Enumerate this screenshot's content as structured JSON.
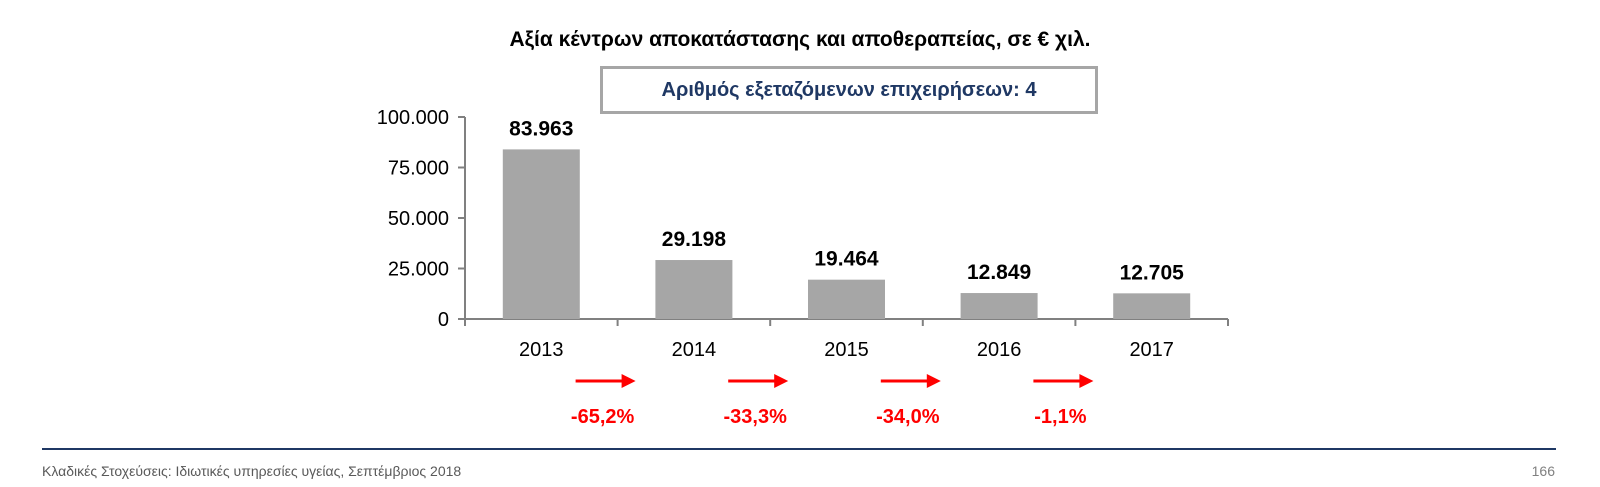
{
  "chart_data": {
    "type": "bar",
    "title": "Αξία κέντρων αποκατάστασης και αποθεραπείας, σε € χιλ.",
    "annotation_box": "Αριθμός εξεταζόμενων επιχειρήσεων: 4",
    "categories": [
      "2013",
      "2014",
      "2015",
      "2016",
      "2017"
    ],
    "values": [
      83963,
      29198,
      19464,
      12849,
      12705
    ],
    "value_labels": [
      "83.963",
      "29.198",
      "19.464",
      "12.849",
      "12.705"
    ],
    "yticks": [
      0,
      25000,
      50000,
      75000,
      100000
    ],
    "ytick_labels": [
      "0",
      "25.000",
      "50.000",
      "75.000",
      "100.000"
    ],
    "ylim": [
      0,
      100000
    ],
    "grid": false,
    "legend": "none",
    "changes": [
      "-65,2%",
      "-33,3%",
      "-34,0%",
      "-1,1%"
    ],
    "bar_color": "#a6a6a6",
    "change_color": "#ff0000"
  },
  "footer": {
    "text": "Κλαδικές Στοχεύσεις: Ιδιωτικές υπηρεσίες υγείας, Σεπτέμβριος 2018",
    "page": "166"
  }
}
